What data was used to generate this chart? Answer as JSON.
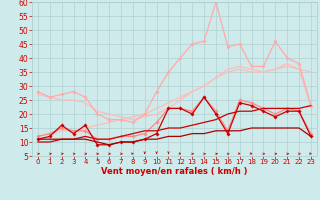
{
  "bg_color": "#ceeaea",
  "grid_color": "#aacccc",
  "xlabel": "Vent moyen/en rafales ( km/h )",
  "xlabel_color": "#cc0000",
  "xlabel_fontsize": 6,
  "xtick_color": "#cc0000",
  "ytick_color": "#cc0000",
  "ytick_fontsize": 5.5,
  "xtick_fontsize": 5.0,
  "xlim": [
    -0.5,
    23.5
  ],
  "ylim": [
    5,
    60
  ],
  "yticks": [
    5,
    10,
    15,
    20,
    25,
    30,
    35,
    40,
    45,
    50,
    55,
    60
  ],
  "xticks": [
    0,
    1,
    2,
    3,
    4,
    5,
    6,
    7,
    8,
    9,
    10,
    11,
    12,
    13,
    14,
    15,
    16,
    17,
    18,
    19,
    20,
    21,
    22,
    23
  ],
  "series": [
    {
      "x": [
        0,
        1,
        2,
        3,
        4,
        5,
        6,
        7,
        8,
        9,
        10,
        11,
        12,
        13,
        14,
        15,
        16,
        17,
        18,
        19,
        20,
        21,
        22,
        23
      ],
      "y": [
        12,
        13,
        14,
        14,
        15,
        16,
        17,
        18,
        19,
        20,
        22,
        24,
        26,
        28,
        30,
        33,
        35,
        36,
        35,
        35,
        36,
        37,
        36,
        35
      ],
      "color": "#ffbbbb",
      "linewidth": 0.9,
      "marker": null,
      "markersize": 0
    },
    {
      "x": [
        0,
        1,
        2,
        3,
        4,
        5,
        6,
        7,
        8,
        9,
        10,
        11,
        12,
        13,
        14,
        15,
        16,
        17,
        18,
        19,
        20,
        21,
        22,
        23
      ],
      "y": [
        27,
        26,
        25,
        25,
        24,
        21,
        20,
        19,
        18,
        19,
        20,
        22,
        25,
        28,
        30,
        33,
        36,
        37,
        36,
        35,
        36,
        38,
        36,
        23
      ],
      "color": "#ffbbbb",
      "linewidth": 0.9,
      "marker": null,
      "markersize": 0
    },
    {
      "x": [
        0,
        1,
        2,
        3,
        4,
        5,
        6,
        7,
        8,
        9,
        10,
        11,
        12,
        13,
        14,
        15,
        16,
        17,
        18,
        19,
        20,
        21,
        22,
        23
      ],
      "y": [
        28,
        26,
        27,
        28,
        26,
        20,
        18,
        18,
        17,
        20,
        28,
        35,
        40,
        45,
        46,
        60,
        44,
        45,
        37,
        37,
        46,
        40,
        38,
        23
      ],
      "color": "#ffaaaa",
      "linewidth": 0.9,
      "marker": "D",
      "markersize": 1.8
    },
    {
      "x": [
        0,
        1,
        2,
        3,
        4,
        5,
        6,
        7,
        8,
        9,
        10,
        11,
        12,
        13,
        14,
        15,
        16,
        17,
        18,
        19,
        20,
        21,
        22,
        23
      ],
      "y": [
        12,
        13,
        15,
        14,
        14,
        11,
        11,
        12,
        12,
        13,
        17,
        22,
        22,
        21,
        26,
        21,
        14,
        25,
        24,
        22,
        20,
        22,
        21,
        13
      ],
      "color": "#ff8888",
      "linewidth": 0.9,
      "marker": "D",
      "markersize": 1.8
    },
    {
      "x": [
        0,
        1,
        2,
        3,
        4,
        5,
        6,
        7,
        8,
        9,
        10,
        11,
        12,
        13,
        14,
        15,
        16,
        17,
        18,
        19,
        20,
        21,
        22,
        23
      ],
      "y": [
        10,
        10,
        11,
        11,
        12,
        11,
        11,
        12,
        13,
        14,
        14,
        15,
        15,
        16,
        17,
        18,
        20,
        21,
        21,
        22,
        22,
        22,
        22,
        23
      ],
      "color": "#cc0000",
      "linewidth": 0.9,
      "marker": null,
      "markersize": 0
    },
    {
      "x": [
        0,
        1,
        2,
        3,
        4,
        5,
        6,
        7,
        8,
        9,
        10,
        11,
        12,
        13,
        14,
        15,
        16,
        17,
        18,
        19,
        20,
        21,
        22,
        23
      ],
      "y": [
        11,
        12,
        16,
        13,
        16,
        9,
        9,
        10,
        10,
        11,
        13,
        22,
        22,
        20,
        26,
        20,
        13,
        24,
        23,
        21,
        19,
        21,
        21,
        12
      ],
      "color": "#cc0000",
      "linewidth": 0.9,
      "marker": "D",
      "markersize": 1.8
    },
    {
      "x": [
        0,
        1,
        2,
        3,
        4,
        5,
        6,
        7,
        8,
        9,
        10,
        11,
        12,
        13,
        14,
        15,
        16,
        17,
        18,
        19,
        20,
        21,
        22,
        23
      ],
      "y": [
        11,
        11,
        11,
        11,
        11,
        10,
        9,
        10,
        10,
        11,
        11,
        12,
        12,
        13,
        13,
        14,
        14,
        14,
        15,
        15,
        15,
        15,
        15,
        12
      ],
      "color": "#aa0000",
      "linewidth": 0.9,
      "marker": null,
      "markersize": 0
    }
  ],
  "arrows": {
    "color": "#cc0000",
    "y_data": 6.2,
    "angles": [
      0,
      0,
      0,
      0,
      330,
      330,
      330,
      330,
      300,
      270,
      270,
      270,
      300,
      330,
      330,
      0,
      330,
      300,
      300,
      330,
      0,
      0,
      330,
      300
    ]
  }
}
